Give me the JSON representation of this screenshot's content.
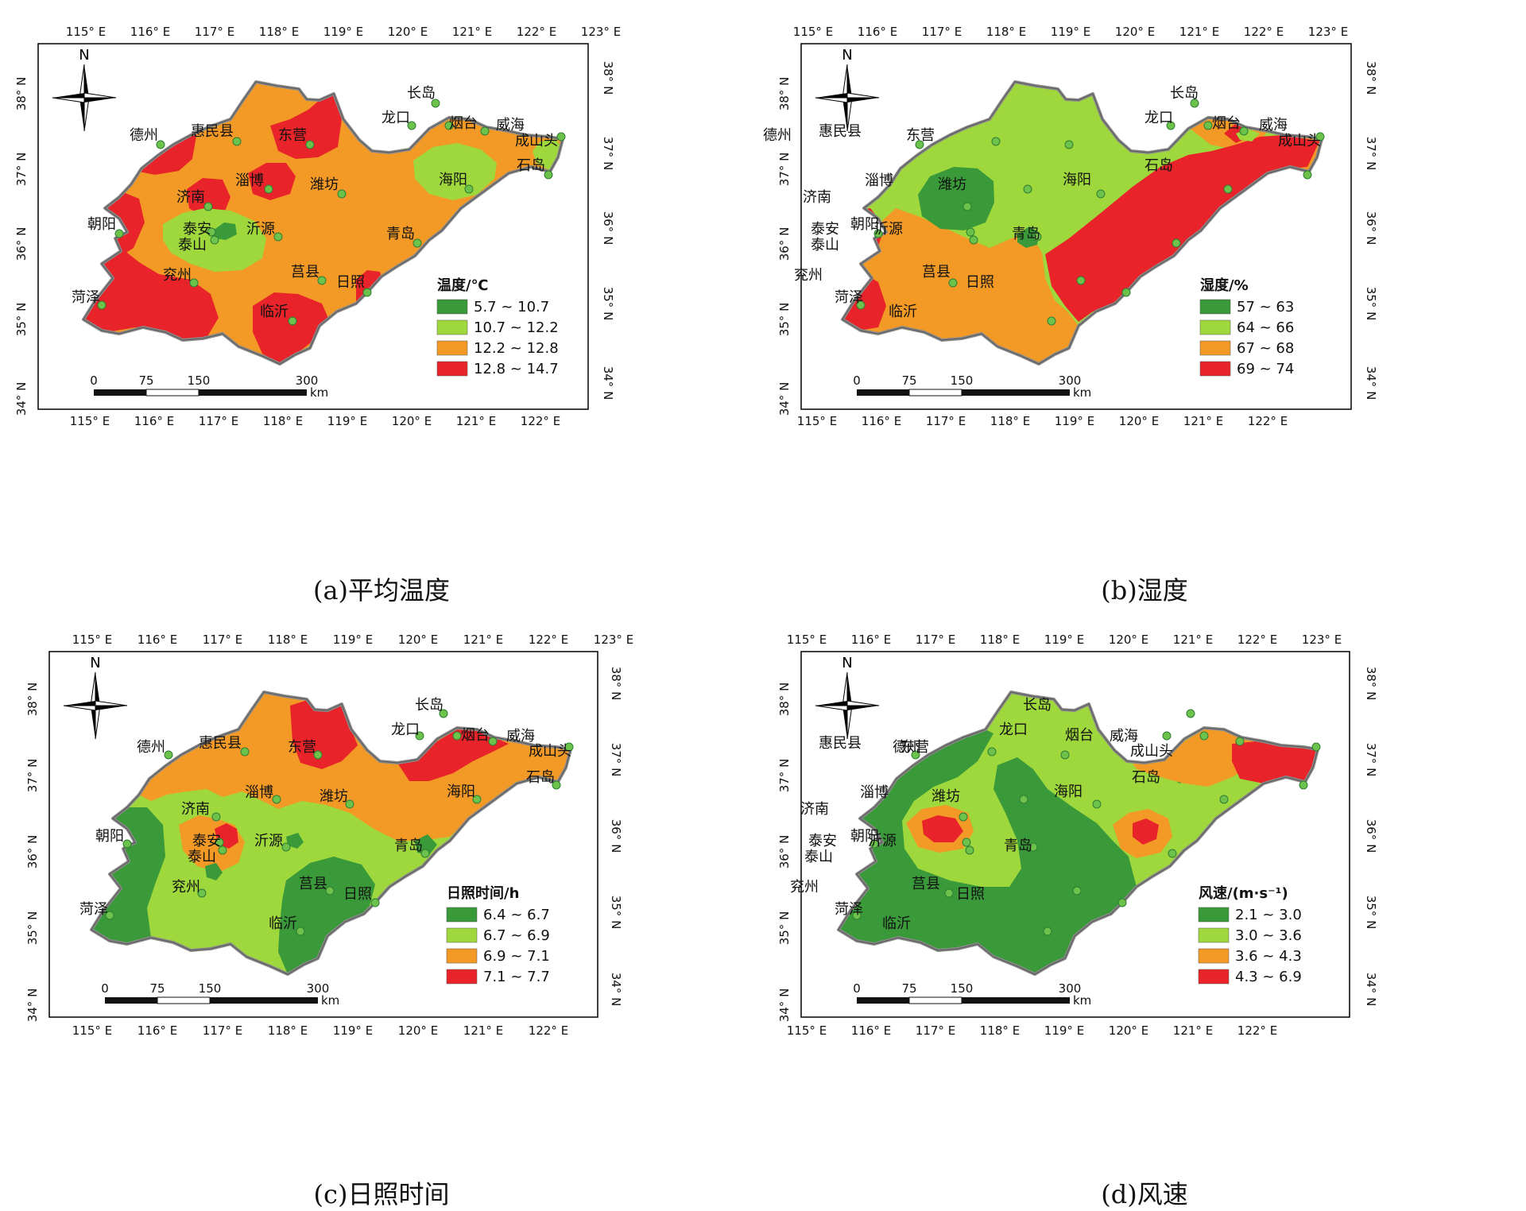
{
  "maps": [
    {
      "id": "a",
      "caption_prefix": "(a)",
      "caption": "平均温度",
      "legend_title": "温度/℃",
      "legend": [
        {
          "label": "5.7 ~ 10.7",
          "color": "#3a9a3a"
        },
        {
          "label": "10.7 ~ 12.2",
          "color": "#9ed83c"
        },
        {
          "label": "12.2 ~ 12.8",
          "color": "#f39a26"
        },
        {
          "label": "12.8 ~ 14.7",
          "color": "#e8242a"
        }
      ],
      "base_class": 2
    },
    {
      "id": "b",
      "caption_prefix": "(b)",
      "caption": "湿度",
      "legend_title": "湿度/%",
      "legend": [
        {
          "label": "57 ~ 63",
          "color": "#3a9a3a"
        },
        {
          "label": "64 ~ 66",
          "color": "#9ed83c"
        },
        {
          "label": "67 ~ 68",
          "color": "#f39a26"
        },
        {
          "label": "69 ~ 74",
          "color": "#e8242a"
        }
      ],
      "base_class": 1
    },
    {
      "id": "c",
      "caption_prefix": "(c)",
      "caption": "日照时间",
      "legend_title": "日照时间/h",
      "legend": [
        {
          "label": "6.4 ~ 6.7",
          "color": "#3a9a3a"
        },
        {
          "label": "6.7 ~ 6.9",
          "color": "#9ed83c"
        },
        {
          "label": "6.9 ~ 7.1",
          "color": "#f39a26"
        },
        {
          "label": "7.1 ~ 7.7",
          "color": "#e8242a"
        }
      ],
      "base_class": 1
    },
    {
      "id": "d",
      "caption_prefix": "(d)",
      "caption": "风速",
      "legend_title": "风速/(m·s⁻¹)",
      "legend": [
        {
          "label": "2.1 ~ 3.0",
          "color": "#3a9a3a"
        },
        {
          "label": "3.0 ~ 3.6",
          "color": "#9ed83c"
        },
        {
          "label": "3.6 ~ 4.3",
          "color": "#f39a26"
        },
        {
          "label": "4.3 ~ 6.9",
          "color": "#e8242a"
        }
      ],
      "base_class": 1
    }
  ],
  "longitude_labels": [
    "115° E",
    "116° E",
    "117° E",
    "118° E",
    "119° E",
    "120° E",
    "121° E",
    "122° E",
    "123° E"
  ],
  "latitude_labels": [
    "34° N",
    "35° N",
    "36° N",
    "37° N",
    "38° N"
  ],
  "north_label": "N",
  "scale_labels": [
    "0",
    "75",
    "150",
    "300"
  ],
  "scale_unit": "km",
  "stations": [
    "长岛",
    "龙口",
    "烟台",
    "威海",
    "成山头",
    "德州",
    "惠民县",
    "东营",
    "淄博",
    "潍坊",
    "济南",
    "海阳",
    "石岛",
    "朝阳",
    "泰安",
    "泰山",
    "沂源",
    "青岛",
    "兖州",
    "莒县",
    "日照",
    "菏泽",
    "临沂"
  ],
  "colors": {
    "class_1": "#3a9a3a",
    "class_2": "#9ed83c",
    "class_3": "#f39a26",
    "class_4": "#e8242a",
    "border": "#8a8a8a",
    "station": "#6cc24a"
  }
}
